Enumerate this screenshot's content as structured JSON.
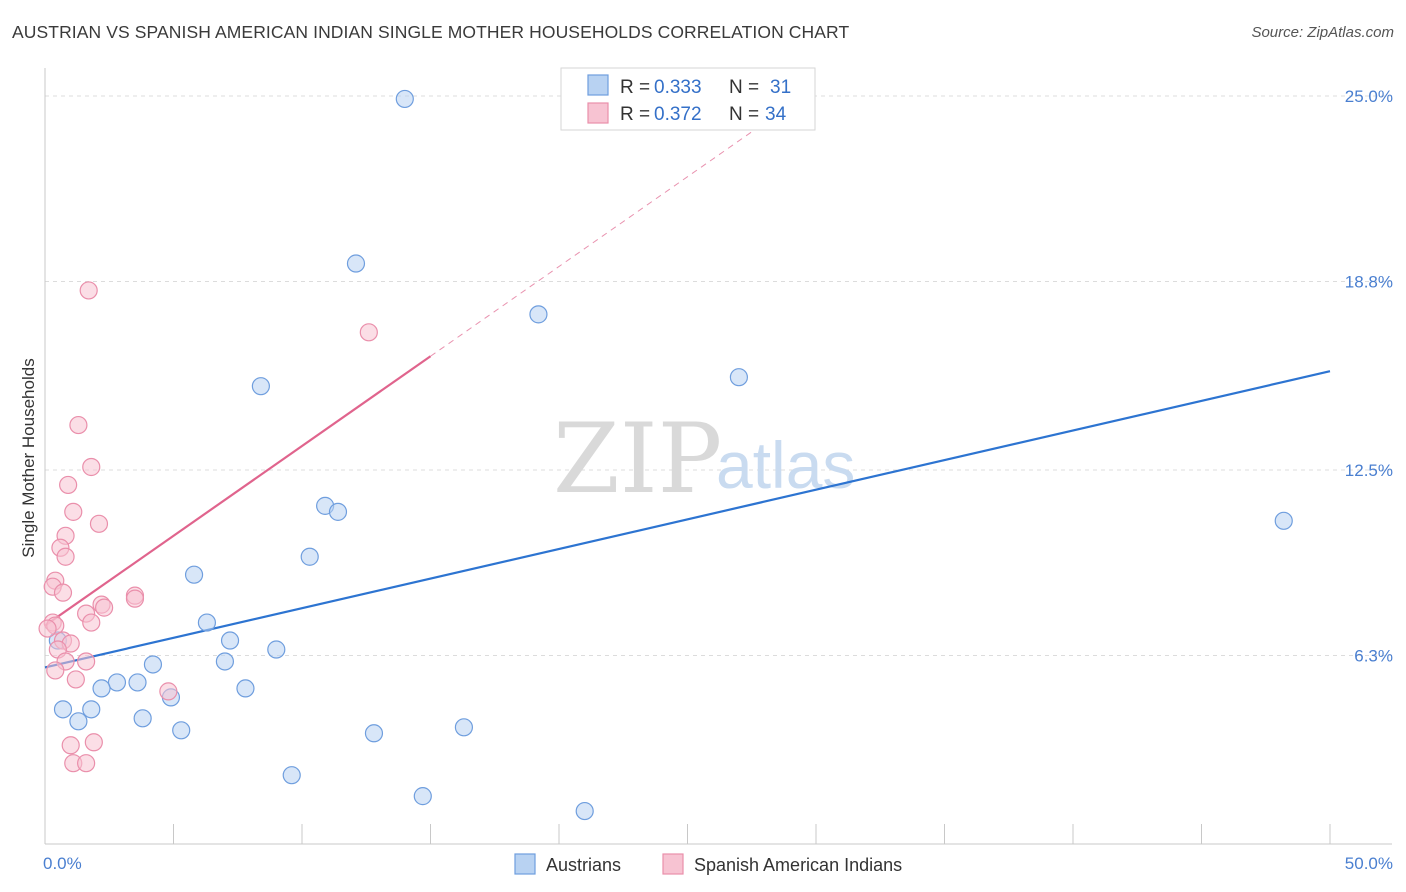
{
  "title": "AUSTRIAN VS SPANISH AMERICAN INDIAN SINGLE MOTHER HOUSEHOLDS CORRELATION CHART",
  "source": "Source: ZipAtlas.com",
  "watermark": {
    "zip": "ZIP",
    "atlas": "atlas"
  },
  "colors": {
    "blue_fill": "#b8d2f2",
    "blue_stroke": "#6f9ede",
    "blue_line": "#2d74d1",
    "pink_fill": "#f7c3d2",
    "pink_stroke": "#ea8fab",
    "pink_line": "#e0648d",
    "grid": "#dcdcdc",
    "tick_label": "#4a7fd0"
  },
  "legend": {
    "series": [
      {
        "r_label": "R = ",
        "r_value": "0.333",
        "n_label": "N = ",
        "n_value": "31"
      },
      {
        "r_label": "R = ",
        "r_value": "0.372",
        "n_label": "N = ",
        "n_value": "34"
      }
    ]
  },
  "chart_data": {
    "type": "scatter",
    "ylabel": "Single Mother Households",
    "xlim": [
      0,
      50
    ],
    "ylim": [
      0,
      25.8
    ],
    "y_ticks": [
      {
        "value": 6.3,
        "label": "6.3%"
      },
      {
        "value": 12.5,
        "label": "12.5%"
      },
      {
        "value": 18.8,
        "label": "18.8%"
      },
      {
        "value": 25.0,
        "label": "25.0%"
      }
    ],
    "x_ticks": [
      {
        "value": 0,
        "label": "0.0%"
      },
      {
        "value": 50,
        "label": "50.0%"
      }
    ],
    "x_minor_ticks": [
      0,
      5,
      10,
      15,
      20,
      25,
      30,
      35,
      40,
      45,
      50
    ],
    "grid": true,
    "legend_position": "top-center",
    "series": [
      {
        "name": "Austrians",
        "color": "#b8d2f2",
        "points": [
          [
            14.0,
            24.9
          ],
          [
            12.1,
            19.4
          ],
          [
            19.2,
            17.7
          ],
          [
            8.4,
            15.3
          ],
          [
            27.0,
            15.6
          ],
          [
            48.2,
            10.8
          ],
          [
            10.9,
            11.3
          ],
          [
            11.4,
            11.1
          ],
          [
            10.3,
            9.6
          ],
          [
            5.8,
            9.0
          ],
          [
            6.3,
            7.4
          ],
          [
            7.2,
            6.8
          ],
          [
            9.0,
            6.5
          ],
          [
            7.0,
            6.1
          ],
          [
            4.2,
            6.0
          ],
          [
            3.6,
            5.4
          ],
          [
            2.8,
            5.4
          ],
          [
            2.2,
            5.2
          ],
          [
            4.9,
            4.9
          ],
          [
            7.8,
            5.2
          ],
          [
            0.7,
            4.5
          ],
          [
            1.8,
            4.5
          ],
          [
            1.3,
            4.1
          ],
          [
            3.8,
            4.2
          ],
          [
            5.3,
            3.8
          ],
          [
            12.8,
            3.7
          ],
          [
            16.3,
            3.9
          ],
          [
            9.6,
            2.3
          ],
          [
            14.7,
            1.6
          ],
          [
            21.0,
            1.1
          ],
          [
            0.5,
            6.8
          ]
        ]
      },
      {
        "name": "Spanish American Indians",
        "color": "#f7c3d2",
        "points": [
          [
            1.7,
            18.5
          ],
          [
            12.6,
            17.1
          ],
          [
            1.3,
            14.0
          ],
          [
            1.8,
            12.6
          ],
          [
            0.9,
            12.0
          ],
          [
            1.1,
            11.1
          ],
          [
            2.1,
            10.7
          ],
          [
            0.8,
            10.3
          ],
          [
            0.6,
            9.9
          ],
          [
            0.8,
            9.6
          ],
          [
            0.4,
            8.8
          ],
          [
            0.3,
            8.6
          ],
          [
            0.7,
            8.4
          ],
          [
            3.5,
            8.3
          ],
          [
            3.5,
            8.2
          ],
          [
            2.2,
            8.0
          ],
          [
            2.3,
            7.9
          ],
          [
            1.6,
            7.7
          ],
          [
            1.8,
            7.4
          ],
          [
            0.3,
            7.4
          ],
          [
            0.4,
            7.3
          ],
          [
            0.1,
            7.2
          ],
          [
            0.7,
            6.8
          ],
          [
            1.0,
            6.7
          ],
          [
            0.5,
            6.5
          ],
          [
            1.6,
            6.1
          ],
          [
            0.8,
            6.1
          ],
          [
            0.4,
            5.8
          ],
          [
            1.2,
            5.5
          ],
          [
            4.8,
            5.1
          ],
          [
            1.0,
            3.3
          ],
          [
            1.9,
            3.4
          ],
          [
            1.1,
            2.7
          ],
          [
            1.6,
            2.7
          ]
        ]
      }
    ],
    "trendlines": [
      {
        "series": "Austrians",
        "x": [
          0,
          50
        ],
        "y": [
          5.9,
          15.8
        ],
        "style": "solid"
      },
      {
        "series": "Spanish American Indians",
        "x": [
          0,
          15
        ],
        "y": [
          7.3,
          16.3
        ],
        "style": "solid"
      },
      {
        "series": "Spanish American Indians",
        "x": [
          15,
          27.5
        ],
        "y": [
          16.3,
          23.8
        ],
        "style": "dashed"
      }
    ]
  }
}
